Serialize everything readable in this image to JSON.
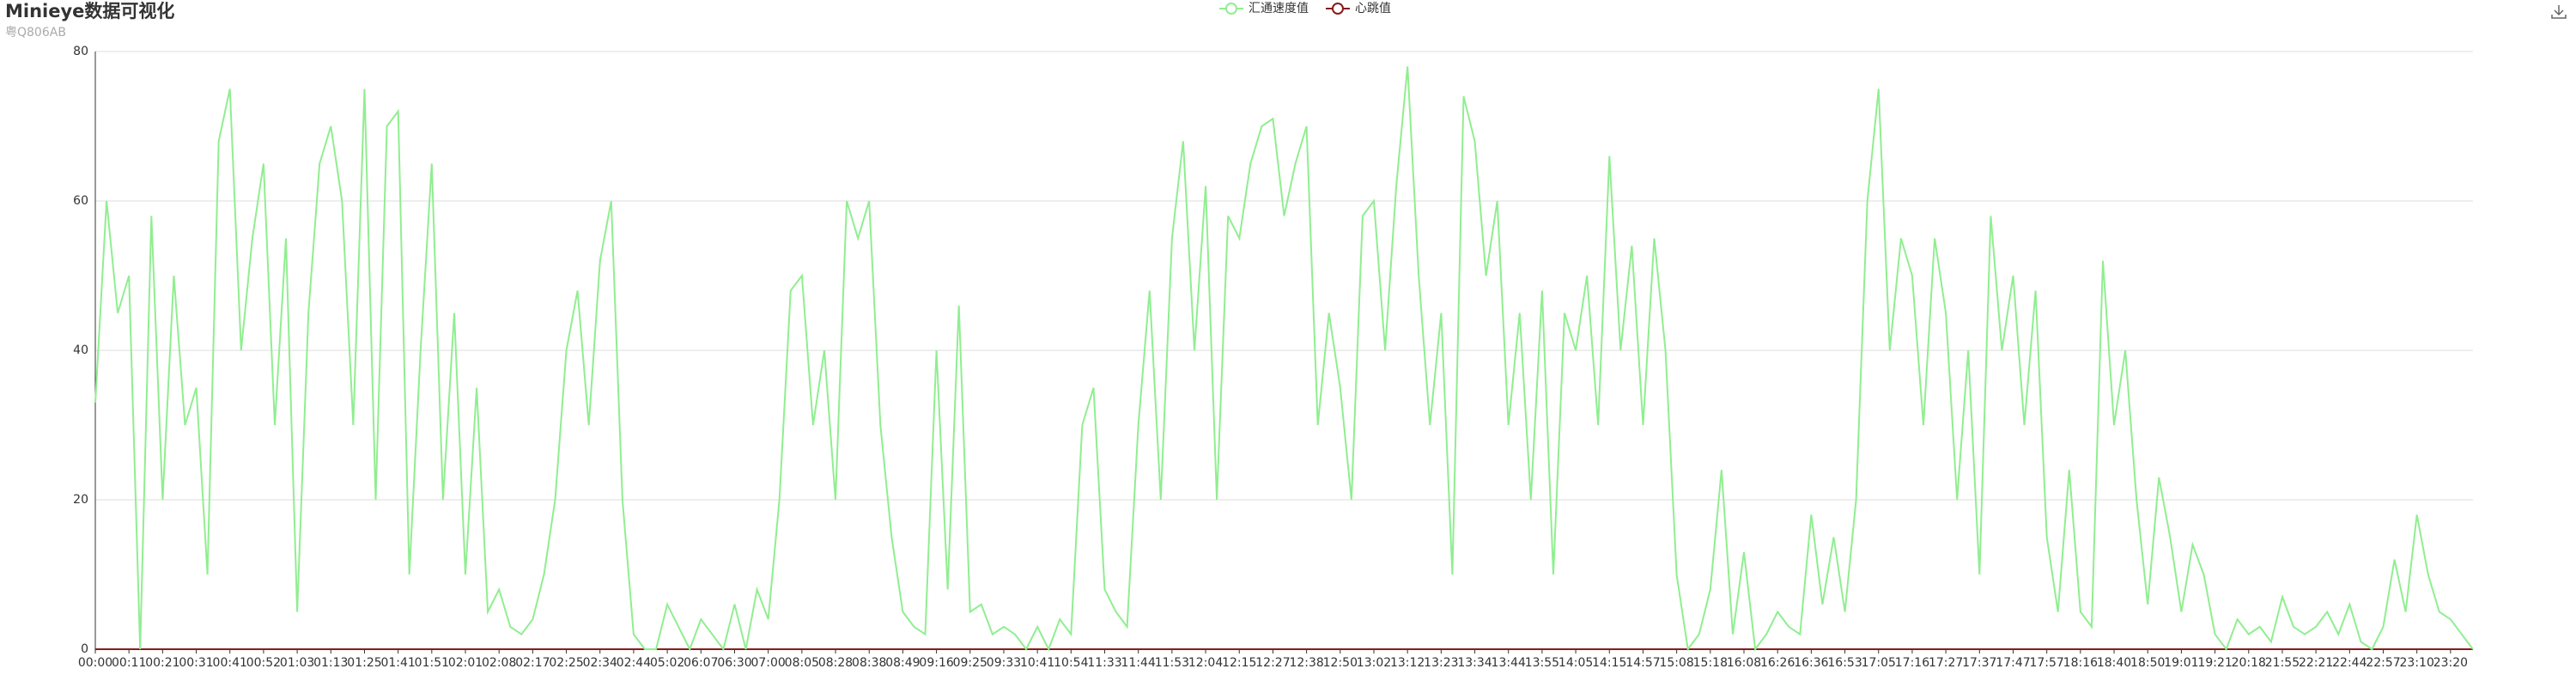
{
  "chart_data": {
    "type": "line",
    "title": "Minieye数据可视化",
    "subtitle": "粤Q806AB",
    "categories": [
      "00:00",
      null,
      null,
      "00:11",
      null,
      null,
      "00:21",
      null,
      null,
      "00:31",
      null,
      null,
      "00:41",
      null,
      null,
      "00:52",
      null,
      null,
      "01:03",
      null,
      null,
      "01:13",
      null,
      null,
      "01:25",
      null,
      null,
      "01:41",
      null,
      null,
      "01:51",
      null,
      null,
      "02:01",
      null,
      null,
      "02:08",
      null,
      null,
      "02:17",
      null,
      null,
      "02:25",
      null,
      null,
      "02:34",
      null,
      null,
      "02:44",
      null,
      null,
      "05:02",
      null,
      null,
      "06:07",
      null,
      null,
      "06:30",
      null,
      null,
      "07:00",
      null,
      null,
      "08:05",
      null,
      null,
      "08:28",
      null,
      null,
      "08:38",
      null,
      null,
      "08:49",
      null,
      null,
      "09:16",
      null,
      null,
      "09:25",
      null,
      null,
      "09:33",
      null,
      null,
      "10:41",
      null,
      null,
      "10:54",
      null,
      null,
      "11:33",
      null,
      null,
      "11:44",
      null,
      null,
      "11:53",
      null,
      null,
      "12:04",
      null,
      null,
      "12:15",
      null,
      null,
      "12:27",
      null,
      null,
      "12:38",
      null,
      null,
      "12:50",
      null,
      null,
      "13:02",
      null,
      null,
      "13:12",
      null,
      null,
      "13:23",
      null,
      null,
      "13:34",
      null,
      null,
      "13:44",
      null,
      null,
      "13:55",
      null,
      null,
      "14:05",
      null,
      null,
      "14:15",
      null,
      null,
      "14:57",
      null,
      null,
      "15:08",
      null,
      null,
      "15:18",
      null,
      null,
      "16:08",
      null,
      null,
      "16:26",
      null,
      null,
      "16:36",
      null,
      null,
      "16:53",
      null,
      null,
      "17:05",
      null,
      null,
      "17:16",
      null,
      null,
      "17:27",
      null,
      null,
      "17:37",
      null,
      null,
      "17:47",
      null,
      null,
      "17:57",
      null,
      null,
      "18:16",
      null,
      null,
      "18:40",
      null,
      null,
      "18:50",
      null,
      null,
      "19:01",
      null,
      null,
      "19:21",
      null,
      null,
      "20:18",
      null,
      null,
      "21:55",
      null,
      null,
      "22:21",
      null,
      null,
      "22:44",
      null,
      null,
      "22:57",
      null,
      null,
      "23:10",
      null,
      null,
      "23:20",
      null,
      null
    ],
    "series": [
      {
        "name": "汇通速度值",
        "color": "#90ee90",
        "values": [
          33,
          60,
          45,
          50,
          0,
          58,
          20,
          50,
          30,
          35,
          10,
          68,
          75,
          40,
          55,
          65,
          30,
          55,
          5,
          45,
          65,
          70,
          60,
          30,
          75,
          20,
          70,
          72,
          10,
          40,
          65,
          20,
          45,
          10,
          35,
          5,
          8,
          3,
          2,
          4,
          10,
          20,
          40,
          48,
          30,
          52,
          60,
          20,
          2,
          0,
          0,
          6,
          3,
          0,
          4,
          2,
          0,
          6,
          0,
          8,
          4,
          20,
          48,
          50,
          30,
          40,
          20,
          60,
          55,
          60,
          30,
          15,
          5,
          3,
          2,
          40,
          8,
          46,
          5,
          6,
          2,
          3,
          2,
          0,
          3,
          0,
          4,
          2,
          30,
          35,
          8,
          5,
          3,
          30,
          48,
          20,
          55,
          68,
          40,
          62,
          20,
          58,
          55,
          65,
          70,
          71,
          58,
          65,
          70,
          30,
          45,
          35,
          20,
          58,
          60,
          40,
          62,
          78,
          50,
          30,
          45,
          10,
          74,
          68,
          50,
          60,
          30,
          45,
          20,
          48,
          10,
          45,
          40,
          50,
          30,
          66,
          40,
          54,
          30,
          55,
          40,
          10,
          0,
          2,
          8,
          24,
          2,
          13,
          0,
          2,
          5,
          3,
          2,
          18,
          6,
          15,
          5,
          20,
          60,
          75,
          40,
          55,
          50,
          30,
          55,
          45,
          20,
          40,
          10,
          58,
          40,
          50,
          30,
          48,
          15,
          5,
          24,
          5,
          3,
          52,
          30,
          40,
          20,
          6,
          23,
          15,
          5,
          14,
          10,
          2,
          0,
          4,
          2,
          3,
          1,
          7,
          3,
          2,
          3,
          5,
          2,
          6,
          1,
          0,
          3,
          12,
          5,
          18,
          10,
          5,
          4,
          2,
          0
        ]
      },
      {
        "name": "心跳值",
        "color": "#8b1a1a",
        "values": [
          0,
          0,
          0,
          0,
          0,
          0,
          0,
          0,
          0,
          0,
          0,
          0,
          0,
          0,
          0,
          0,
          0,
          0,
          0,
          0,
          0,
          0,
          0,
          0,
          0,
          0,
          0,
          0,
          0,
          0,
          0,
          0,
          0,
          0,
          0,
          0,
          0,
          0,
          0,
          0,
          0,
          0,
          0,
          0,
          0,
          0,
          0,
          0,
          0,
          0,
          0,
          0,
          0,
          0,
          0,
          0,
          0,
          0,
          0,
          0,
          0,
          0,
          0,
          0,
          0,
          0,
          0,
          0,
          0,
          0,
          0,
          0,
          0,
          0,
          0,
          0,
          0,
          0,
          0,
          0,
          0,
          0,
          0,
          0,
          0,
          0,
          0,
          0,
          0,
          0,
          0,
          0,
          0,
          0,
          0,
          0,
          0,
          0,
          0,
          0,
          0,
          0,
          0,
          0,
          0,
          0,
          0,
          0,
          0,
          0,
          0,
          0,
          0,
          0,
          0,
          0,
          0,
          0,
          0,
          0,
          0,
          0,
          0,
          0,
          0,
          0,
          0,
          0,
          0,
          0,
          0,
          0,
          0,
          0,
          0,
          0,
          0,
          0,
          0,
          0,
          0,
          0,
          0,
          0,
          0,
          0,
          0,
          0,
          0,
          0,
          0,
          0,
          0,
          0,
          0,
          0,
          0,
          0,
          0,
          0,
          0,
          0,
          0,
          0,
          0,
          0,
          0,
          0,
          0,
          0,
          0,
          0,
          0,
          0,
          0,
          0,
          0,
          0,
          0,
          0,
          0,
          0,
          0,
          0,
          0,
          0,
          0,
          0,
          0,
          0,
          0,
          0,
          0,
          0,
          0,
          0,
          0,
          0,
          0,
          0,
          0,
          0,
          0,
          0,
          0,
          0,
          0,
          0,
          0,
          0,
          0,
          0,
          0
        ]
      }
    ],
    "ylim": [
      0,
      80
    ],
    "yticks": [
      0,
      20,
      40,
      60,
      80
    ],
    "grid": true
  }
}
